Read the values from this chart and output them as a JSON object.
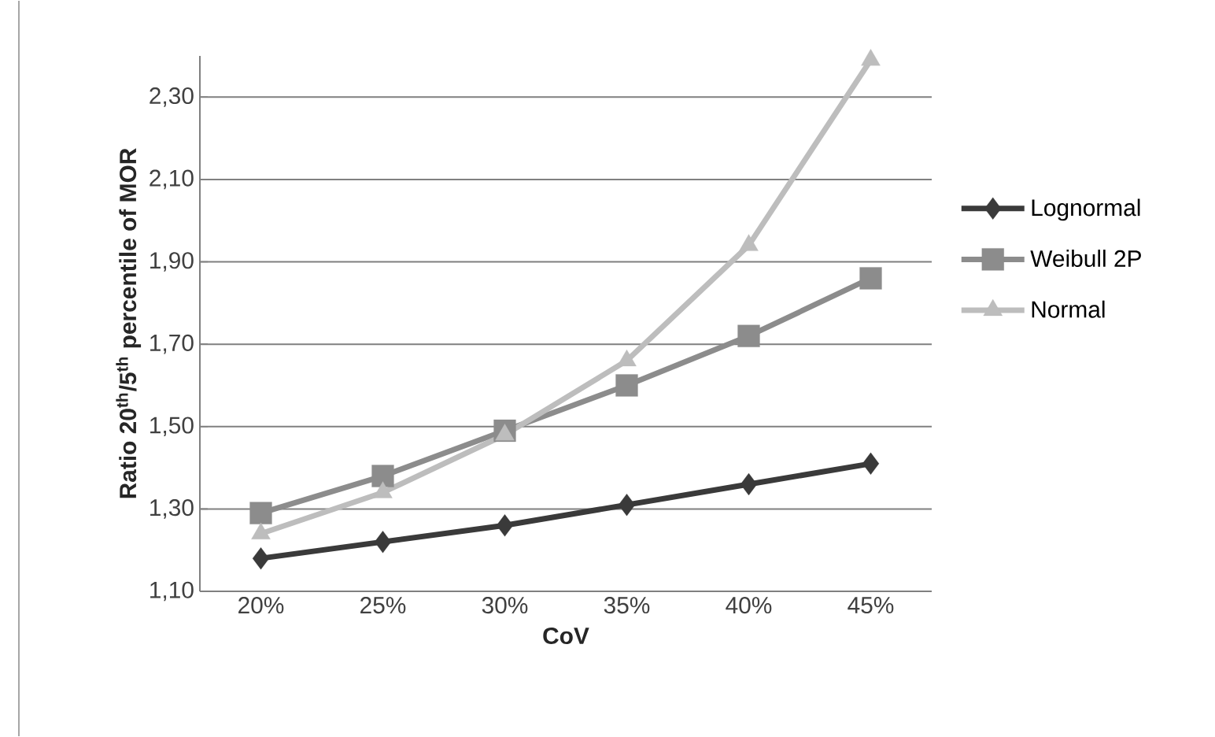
{
  "chart_data": {
    "type": "line",
    "xlabel": "CoV",
    "ylabel": "Ratio 20$^{th}$/5$^{th}$ percentile of MOR",
    "categories": [
      "20%",
      "25%",
      "30%",
      "35%",
      "40%",
      "45%"
    ],
    "ylim": [
      1.1,
      2.4
    ],
    "yticks": [
      {
        "value": 1.1,
        "label": "1,10"
      },
      {
        "value": 1.3,
        "label": "1,30"
      },
      {
        "value": 1.5,
        "label": "1,50"
      },
      {
        "value": 1.7,
        "label": "1,70"
      },
      {
        "value": 1.9,
        "label": "1,90"
      },
      {
        "value": 2.1,
        "label": "2,10"
      },
      {
        "value": 2.3,
        "label": "2,30"
      }
    ],
    "grid": "y",
    "legend": "right",
    "line_style": "solid",
    "series": [
      {
        "name": "Lognormal",
        "color": "#3a3a3a",
        "marker": "diamond",
        "values": [
          1.18,
          1.22,
          1.26,
          1.31,
          1.36,
          1.41
        ]
      },
      {
        "name": "Weibull 2P",
        "color": "#8c8c8c",
        "marker": "square",
        "values": [
          1.29,
          1.38,
          1.49,
          1.6,
          1.72,
          1.86
        ]
      },
      {
        "name": "Normal",
        "color": "#bdbdbd",
        "marker": "triangle",
        "values": [
          1.24,
          1.34,
          1.48,
          1.66,
          1.94,
          2.39
        ]
      }
    ]
  }
}
